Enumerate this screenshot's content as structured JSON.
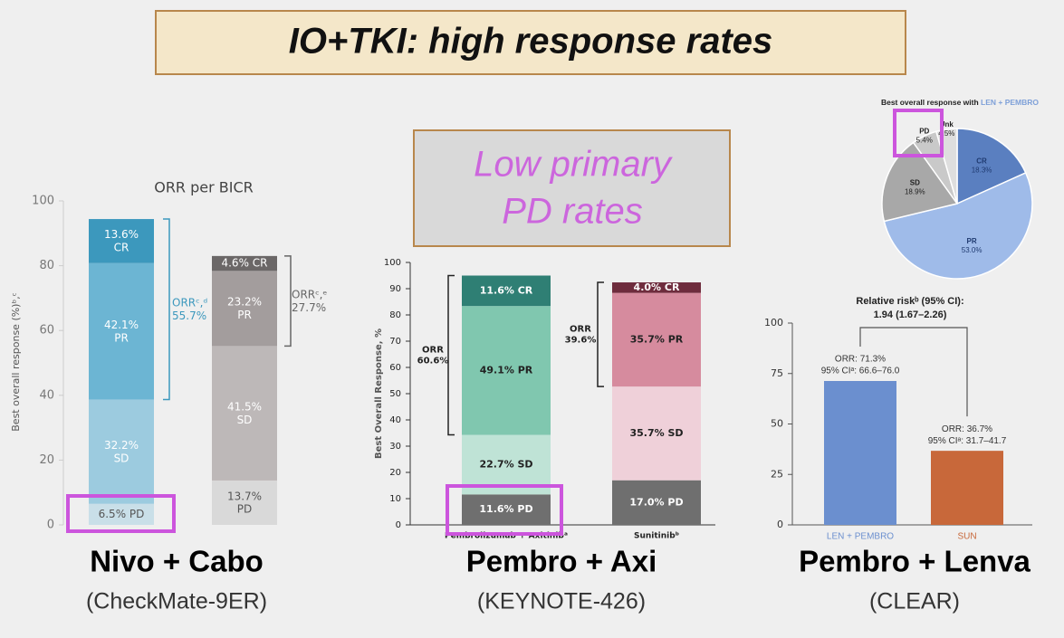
{
  "title": "IO+TKI: high response rates",
  "callout": [
    "Low primary",
    "PD rates"
  ],
  "captions": [
    {
      "name": "Nivo + Cabo",
      "trial": "(CheckMate-9ER)"
    },
    {
      "name": "Pembro + Axi",
      "trial": "(KEYNOTE-426)"
    },
    {
      "name": "Pembro + Lenva",
      "trial": "(CLEAR)"
    }
  ],
  "chart_data": [
    {
      "type": "stacked_bar",
      "title": "ORR per BICR",
      "ylabel": "Best overall response (%)ᵇ,ᶜ",
      "categories": [
        null,
        null
      ],
      "ylim": [
        0,
        100
      ],
      "yticks": [
        0,
        20,
        40,
        60,
        80,
        100
      ],
      "series": [
        {
          "values": [
            6.5,
            13.7
          ],
          "colors": [
            "#c9dfe8",
            "#d9d9d9"
          ],
          "value_labels": [
            "6.5% PD",
            "13.7%\nPD"
          ]
        },
        {
          "values": [
            32.2,
            41.5
          ],
          "colors": [
            "#9ccbdf",
            "#bdb8b8"
          ],
          "value_labels": [
            "32.2%\nSD",
            "41.5%\nSD"
          ]
        },
        {
          "values": [
            42.1,
            23.2
          ],
          "colors": [
            "#6cb5d3",
            "#a39d9d"
          ],
          "value_labels": [
            "42.1%\nPR",
            "23.2%\nPR"
          ]
        },
        {
          "values": [
            13.6,
            4.6
          ],
          "colors": [
            "#3c98bd",
            "#6b6767"
          ],
          "value_labels": [
            "13.6%\nCR",
            "4.6% CR"
          ]
        }
      ],
      "annotations": [
        "ORRᶜ,ᵈ\n55.7%",
        "ORRᶜ,ᵉ\n27.7%"
      ]
    },
    {
      "type": "stacked_bar",
      "ylabel": "Best Overall Response, %",
      "categories": [
        "Pembrolizumab + Axitinibᵃ",
        "Sunitinibᵇ"
      ],
      "ylim": [
        0,
        100
      ],
      "yticks": [
        0,
        10,
        20,
        30,
        40,
        50,
        60,
        70,
        80,
        90,
        100
      ],
      "series": [
        {
          "values": [
            11.6,
            17.0
          ],
          "colors": [
            "#6f6f6f",
            "#6f6f6f"
          ],
          "value_labels": [
            "11.6% PD",
            "17.0% PD"
          ]
        },
        {
          "values": [
            22.7,
            35.7
          ],
          "colors": [
            "#bfe3d6",
            "#efd0d9"
          ],
          "value_labels": [
            "22.7% SD",
            "35.7% SD"
          ]
        },
        {
          "values": [
            49.1,
            35.7
          ],
          "colors": [
            "#80c7af",
            "#d68b9e"
          ],
          "value_labels": [
            "49.1% PR",
            "35.7% PR"
          ]
        },
        {
          "values": [
            11.6,
            4.0
          ],
          "colors": [
            "#2f7f74",
            "#6e2c3d"
          ],
          "value_labels": [
            "11.6% CR",
            "4.0% CR"
          ]
        }
      ],
      "annotations": [
        "ORR\n60.6%",
        "ORR\n39.6%"
      ]
    },
    {
      "type": "pie",
      "title": "Best overall response with",
      "title_highlight": "LEN + PEMBRO",
      "categories": [
        "CR",
        "PR",
        "SD",
        "PD",
        "Unk"
      ],
      "values": [
        18.3,
        53.0,
        18.9,
        5.4,
        4.5
      ],
      "value_labels": [
        "18.3%",
        "53.0%",
        "18.9%",
        "5.4%",
        "4.5%"
      ],
      "colors": [
        "#5a7fc0",
        "#9fbbe9",
        "#a8a8a8",
        "#c9c9c9",
        "#dedede"
      ]
    },
    {
      "type": "bar",
      "title": [
        "Relative riskᵇ (95% CI):",
        "1.94 (1.67–2.26)"
      ],
      "categories": [
        "LEN + PEMBRO",
        "SUN"
      ],
      "values": [
        71.3,
        36.7
      ],
      "value_labels": [
        "ORR: 71.3%",
        "ORR: 36.7%"
      ],
      "ci_labels": [
        "95% CIᵃ: 66.6–76.0",
        "95% CIᵃ: 31.7–41.7"
      ],
      "colors": [
        "#6b8fcf",
        "#c8683a"
      ],
      "ylim": [
        0,
        100
      ],
      "yticks": [
        0,
        25,
        50,
        75,
        100
      ]
    }
  ]
}
